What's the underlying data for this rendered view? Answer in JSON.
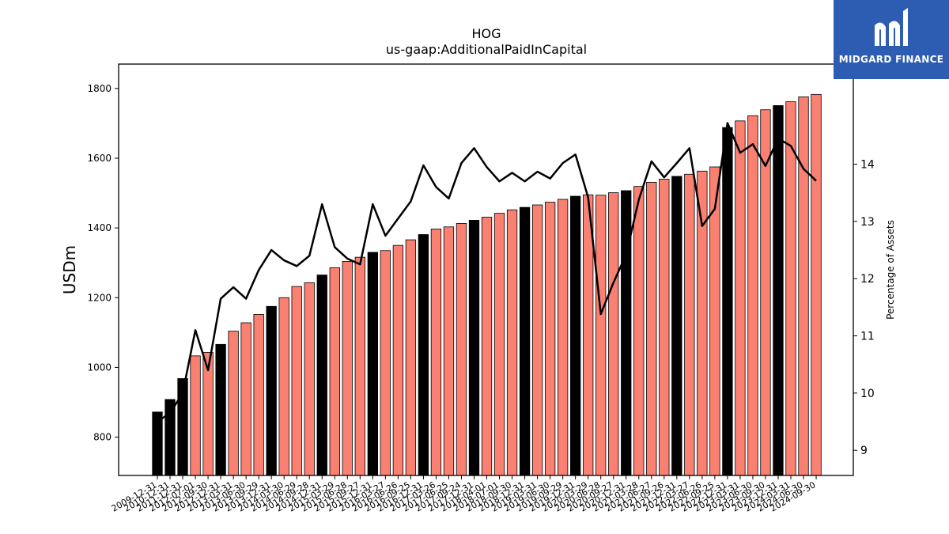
{
  "chart_data": {
    "type": "bar",
    "title": "HOG",
    "subtitle": "us-gaap:AdditionalPaidInCapital",
    "ylabel": "USDm",
    "y2label": "Percentage of Assets",
    "ylim": [
      690,
      1870
    ],
    "y2lim": [
      8.56,
      15.75
    ],
    "yticks": [
      800,
      1000,
      1200,
      1400,
      1600,
      1800
    ],
    "y2ticks": [
      9,
      10,
      11,
      12,
      13,
      14
    ],
    "colors": {
      "annual": "#000000",
      "quarter": "#fa8072",
      "line": "#000000"
    },
    "categories": [
      "2009-12-31",
      "2010-12-31",
      "2011-12-31",
      "2012-07-01",
      "2012-09-30",
      "2012-12-31",
      "2013-03-31",
      "2013-06-30",
      "2013-09-29",
      "2013-12-31",
      "2014-03-30",
      "2014-06-29",
      "2014-09-28",
      "2014-12-31",
      "2015-03-29",
      "2015-06-28",
      "2015-09-27",
      "2015-12-31",
      "2016-03-27",
      "2016-06-26",
      "2016-09-25",
      "2016-12-31",
      "2017-03-26",
      "2017-06-25",
      "2017-09-24",
      "2017-12-31",
      "2018-04-01",
      "2018-07-01",
      "2018-09-30",
      "2018-12-31",
      "2019-03-31",
      "2019-06-30",
      "2019-09-29",
      "2019-12-31",
      "2020-03-29",
      "2020-06-28",
      "2020-09-27",
      "2020-12-31",
      "2021-03-28",
      "2021-06-27",
      "2021-09-26",
      "2021-12-31",
      "2022-03-27",
      "2022-06-26",
      "2022-09-25",
      "2022-12-31",
      "2023-03-31",
      "2023-06-30",
      "2023-09-30",
      "2023-12-31",
      "2024-03-31",
      "2024-06-30",
      "2024-09-30"
    ],
    "series": [
      {
        "kind": "bar",
        "values": [
          872,
          908,
          968,
          1033,
          1043,
          1066,
          1104,
          1128,
          1152,
          1175,
          1200,
          1232,
          1243,
          1265,
          1286,
          1304,
          1316,
          1330,
          1335,
          1350,
          1366,
          1381,
          1397,
          1403,
          1413,
          1422,
          1431,
          1442,
          1452,
          1459,
          1466,
          1474,
          1482,
          1491,
          1495,
          1494,
          1501,
          1507,
          1519,
          1531,
          1540,
          1548,
          1554,
          1563,
          1575,
          1688,
          1707,
          1722,
          1739,
          1751,
          1762,
          1776,
          1783
        ],
        "annual": [
          true,
          true,
          true,
          false,
          false,
          true,
          false,
          false,
          false,
          true,
          false,
          false,
          false,
          true,
          false,
          false,
          false,
          true,
          false,
          false,
          false,
          true,
          false,
          false,
          false,
          true,
          false,
          false,
          false,
          true,
          false,
          false,
          false,
          true,
          false,
          false,
          false,
          true,
          false,
          false,
          false,
          true,
          false,
          false,
          false,
          true,
          false,
          false,
          false,
          true,
          false,
          false,
          false
        ]
      },
      {
        "kind": "line",
        "axis": "right",
        "values": [
          9.5,
          9.65,
          10.0,
          11.1,
          10.4,
          11.65,
          11.85,
          11.65,
          12.15,
          12.5,
          12.32,
          12.22,
          12.4,
          13.3,
          12.55,
          12.35,
          12.25,
          13.3,
          12.75,
          13.05,
          13.35,
          13.98,
          13.6,
          13.4,
          14.02,
          14.28,
          13.95,
          13.7,
          13.85,
          13.7,
          13.87,
          13.75,
          14.02,
          14.17,
          13.42,
          11.38,
          11.93,
          12.42,
          13.38,
          14.05,
          13.77,
          14.02,
          14.28,
          12.92,
          13.22,
          14.72,
          14.2,
          14.35,
          13.97,
          14.45,
          14.32,
          13.92,
          13.71
        ]
      }
    ]
  },
  "logo": {
    "name": "mf-logo-icon",
    "text": "MIDGARD FINANCE"
  }
}
